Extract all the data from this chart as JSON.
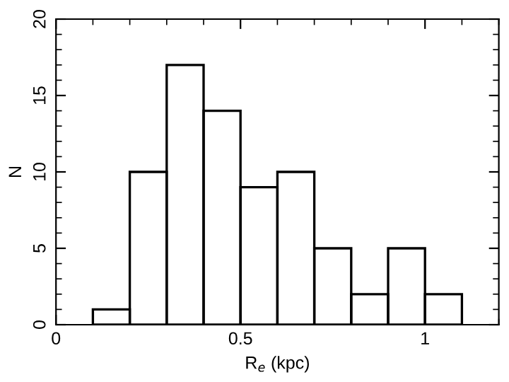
{
  "chart_data": {
    "type": "histogram",
    "xlabel": "R$_{e}$ (kpc)",
    "ylabel": "N",
    "bins": [
      0.1,
      0.2,
      0.3,
      0.4,
      0.5,
      0.6,
      0.7,
      0.8,
      0.9,
      1.0,
      1.1
    ],
    "values": [
      1,
      10,
      17,
      14,
      9,
      10,
      5,
      2,
      5,
      2
    ],
    "color": "#000000",
    "xlim": [
      0,
      1.2
    ],
    "xticks": [
      0,
      0.5,
      1
    ],
    "ylim": [
      0,
      20
    ],
    "yticks": [
      0,
      5,
      10,
      15,
      20
    ],
    "grid": false
  }
}
